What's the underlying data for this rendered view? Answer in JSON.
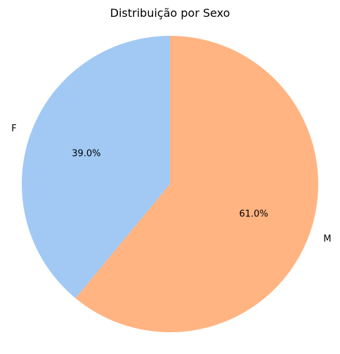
{
  "chart_data": {
    "type": "pie",
    "title": "Distribuição por Sexo",
    "categories": [
      "F",
      "M"
    ],
    "values": [
      39.0,
      61.0
    ],
    "percent_labels": [
      "39.0%",
      "61.0%"
    ],
    "colors": [
      "#a1c9f4",
      "#ffb482"
    ],
    "start_angle_deg": 90,
    "direction": "counterclockwise",
    "legend": "none"
  }
}
